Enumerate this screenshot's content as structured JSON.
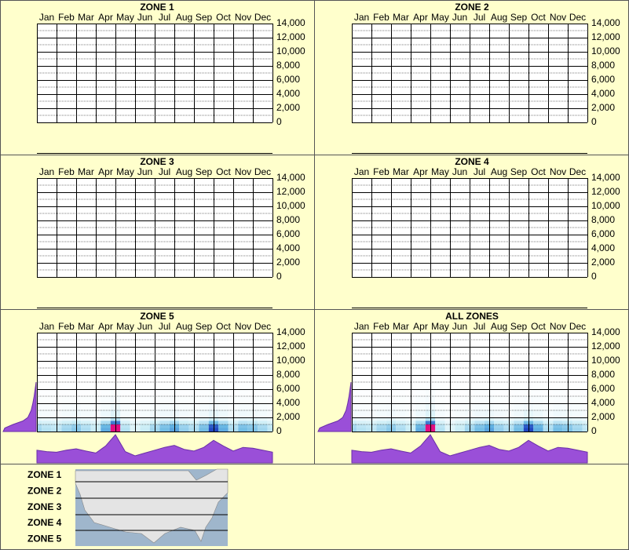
{
  "chart_data": [
    {
      "type": "heatmap",
      "title": "ZONE 1",
      "categories": [
        "Jan",
        "Feb",
        "Mar",
        "Apr",
        "May",
        "Jun",
        "Jul",
        "Aug",
        "Sep",
        "Oct",
        "Nov",
        "Dec"
      ],
      "ylim": [
        0,
        14000
      ],
      "yticks": [
        0,
        {
          "value": 2000,
          "label": "2,000"
        },
        {
          "value": 4000,
          "label": "4,000"
        },
        {
          "value": 6000,
          "label": "6,000"
        },
        {
          "value": 8000,
          "label": "8,000"
        },
        {
          "value": 10000,
          "label": "10,000"
        },
        {
          "value": 12000,
          "label": "12,000"
        },
        {
          "value": 14000,
          "label": "14,000"
        }
      ]
    },
    {
      "type": "heatmap",
      "title": "ZONE 2",
      "categories": [
        "Jan",
        "Feb",
        "Mar",
        "Apr",
        "May",
        "Jun",
        "Jul",
        "Aug",
        "Sep",
        "Oct",
        "Nov",
        "Dec"
      ],
      "ylim": [
        0,
        14000
      ],
      "yticks": [
        0,
        {
          "value": 2000,
          "label": "2,000"
        },
        {
          "value": 4000,
          "label": "4,000"
        },
        {
          "value": 6000,
          "label": "6,000"
        },
        {
          "value": 8000,
          "label": "8,000"
        },
        {
          "value": 10000,
          "label": "10,000"
        },
        {
          "value": 12000,
          "label": "12,000"
        },
        {
          "value": 14000,
          "label": "14,000"
        }
      ]
    },
    {
      "type": "heatmap",
      "title": "ZONE 3",
      "categories": [
        "Jan",
        "Feb",
        "Mar",
        "Apr",
        "May",
        "Jun",
        "Jul",
        "Aug",
        "Sep",
        "Oct",
        "Nov",
        "Dec"
      ],
      "ylim": [
        0,
        14000
      ],
      "yticks": [
        0,
        {
          "value": 2000,
          "label": "2,000"
        },
        {
          "value": 4000,
          "label": "4,000"
        },
        {
          "value": 6000,
          "label": "6,000"
        },
        {
          "value": 8000,
          "label": "8,000"
        },
        {
          "value": 10000,
          "label": "10,000"
        },
        {
          "value": 12000,
          "label": "12,000"
        },
        {
          "value": 14000,
          "label": "14,000"
        }
      ]
    },
    {
      "type": "heatmap",
      "title": "ZONE 4",
      "categories": [
        "Jan",
        "Feb",
        "Mar",
        "Apr",
        "May",
        "Jun",
        "Jul",
        "Aug",
        "Sep",
        "Oct",
        "Nov",
        "Dec"
      ],
      "ylim": [
        0,
        14000
      ],
      "yticks": [
        0,
        {
          "value": 2000,
          "label": "2,000"
        },
        {
          "value": 4000,
          "label": "4,000"
        },
        {
          "value": 6000,
          "label": "6,000"
        },
        {
          "value": 8000,
          "label": "8,000"
        },
        {
          "value": 10000,
          "label": "10,000"
        },
        {
          "value": 12000,
          "label": "12,000"
        },
        {
          "value": 14000,
          "label": "14,000"
        }
      ]
    },
    {
      "type": "heatmap",
      "title": "ZONE 5",
      "categories": [
        "Jan",
        "Feb",
        "Mar",
        "Apr",
        "May",
        "Jun",
        "Jul",
        "Aug",
        "Sep",
        "Oct",
        "Nov",
        "Dec"
      ],
      "ylim": [
        0,
        14000
      ],
      "yticks": [
        0,
        {
          "value": 2000,
          "label": "2,000"
        },
        {
          "value": 4000,
          "label": "4,000"
        },
        {
          "value": 6000,
          "label": "6,000"
        },
        {
          "value": 8000,
          "label": "8,000"
        },
        {
          "value": 10000,
          "label": "10,000"
        },
        {
          "value": 12000,
          "label": "12,000"
        },
        {
          "value": 14000,
          "label": "14,000"
        }
      ],
      "seasonal_profile": [
        45,
        40,
        38,
        45,
        50,
        42,
        35,
        60,
        100,
        40,
        25,
        35,
        45,
        55,
        62,
        48,
        42,
        55,
        80,
        60,
        42,
        55,
        52,
        45,
        38
      ],
      "elevation_bins": [
        0,
        500,
        1000,
        1500,
        2000,
        3000,
        4000,
        5000,
        6000,
        7000
      ],
      "elevation_profile": [
        100,
        95,
        70,
        40,
        25,
        15,
        10,
        6,
        3,
        0
      ]
    },
    {
      "type": "heatmap",
      "title": "ALL ZONES",
      "categories": [
        "Jan",
        "Feb",
        "Mar",
        "Apr",
        "May",
        "Jun",
        "Jul",
        "Aug",
        "Sep",
        "Oct",
        "Nov",
        "Dec"
      ],
      "ylim": [
        0,
        14000
      ],
      "yticks": [
        0,
        {
          "value": 2000,
          "label": "2,000"
        },
        {
          "value": 4000,
          "label": "4,000"
        },
        {
          "value": 6000,
          "label": "6,000"
        },
        {
          "value": 8000,
          "label": "8,000"
        },
        {
          "value": 10000,
          "label": "10,000"
        },
        {
          "value": 12000,
          "label": "12,000"
        },
        {
          "value": 14000,
          "label": "14,000"
        }
      ],
      "seasonal_profile": [
        45,
        40,
        38,
        45,
        50,
        42,
        35,
        60,
        100,
        40,
        25,
        35,
        45,
        55,
        62,
        48,
        42,
        55,
        80,
        60,
        42,
        55,
        52,
        45,
        38
      ],
      "elevation_bins": [
        0,
        500,
        1000,
        1500,
        2000,
        3000,
        4000,
        5000,
        6000,
        7000
      ],
      "elevation_profile": [
        100,
        95,
        70,
        40,
        25,
        15,
        10,
        6,
        3,
        0
      ]
    }
  ],
  "legend": {
    "zones": [
      "ZONE 1",
      "ZONE 2",
      "ZONE 3",
      "ZONE 4",
      "ZONE 5"
    ]
  }
}
